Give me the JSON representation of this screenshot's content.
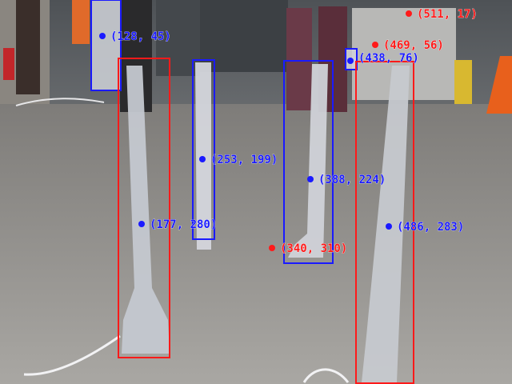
{
  "colors": {
    "red_box": "#ff1a1a",
    "blue_box": "#1a1aff",
    "red_text": "#ff1a1a",
    "blue_text": "#1a1aff",
    "floor": "#9a9894",
    "wall": "#5e6266",
    "pole": "#e6e6ea",
    "mask": "#b4b8c0"
  },
  "detections": [
    {
      "label": "(128, 45)",
      "color": "blue"
    },
    {
      "label": "(177, 280)",
      "color": "blue"
    },
    {
      "label": "(253, 199)",
      "color": "blue"
    },
    {
      "label": "(388, 224)",
      "color": "blue"
    },
    {
      "label": "(340, 310)",
      "color": "red"
    },
    {
      "label": "(438, 76)",
      "color": "blue"
    },
    {
      "label": "(469, 56)",
      "color": "red"
    },
    {
      "label": "(511, 17)",
      "color": "red"
    },
    {
      "label": "(486, 283)",
      "color": "blue"
    }
  ]
}
